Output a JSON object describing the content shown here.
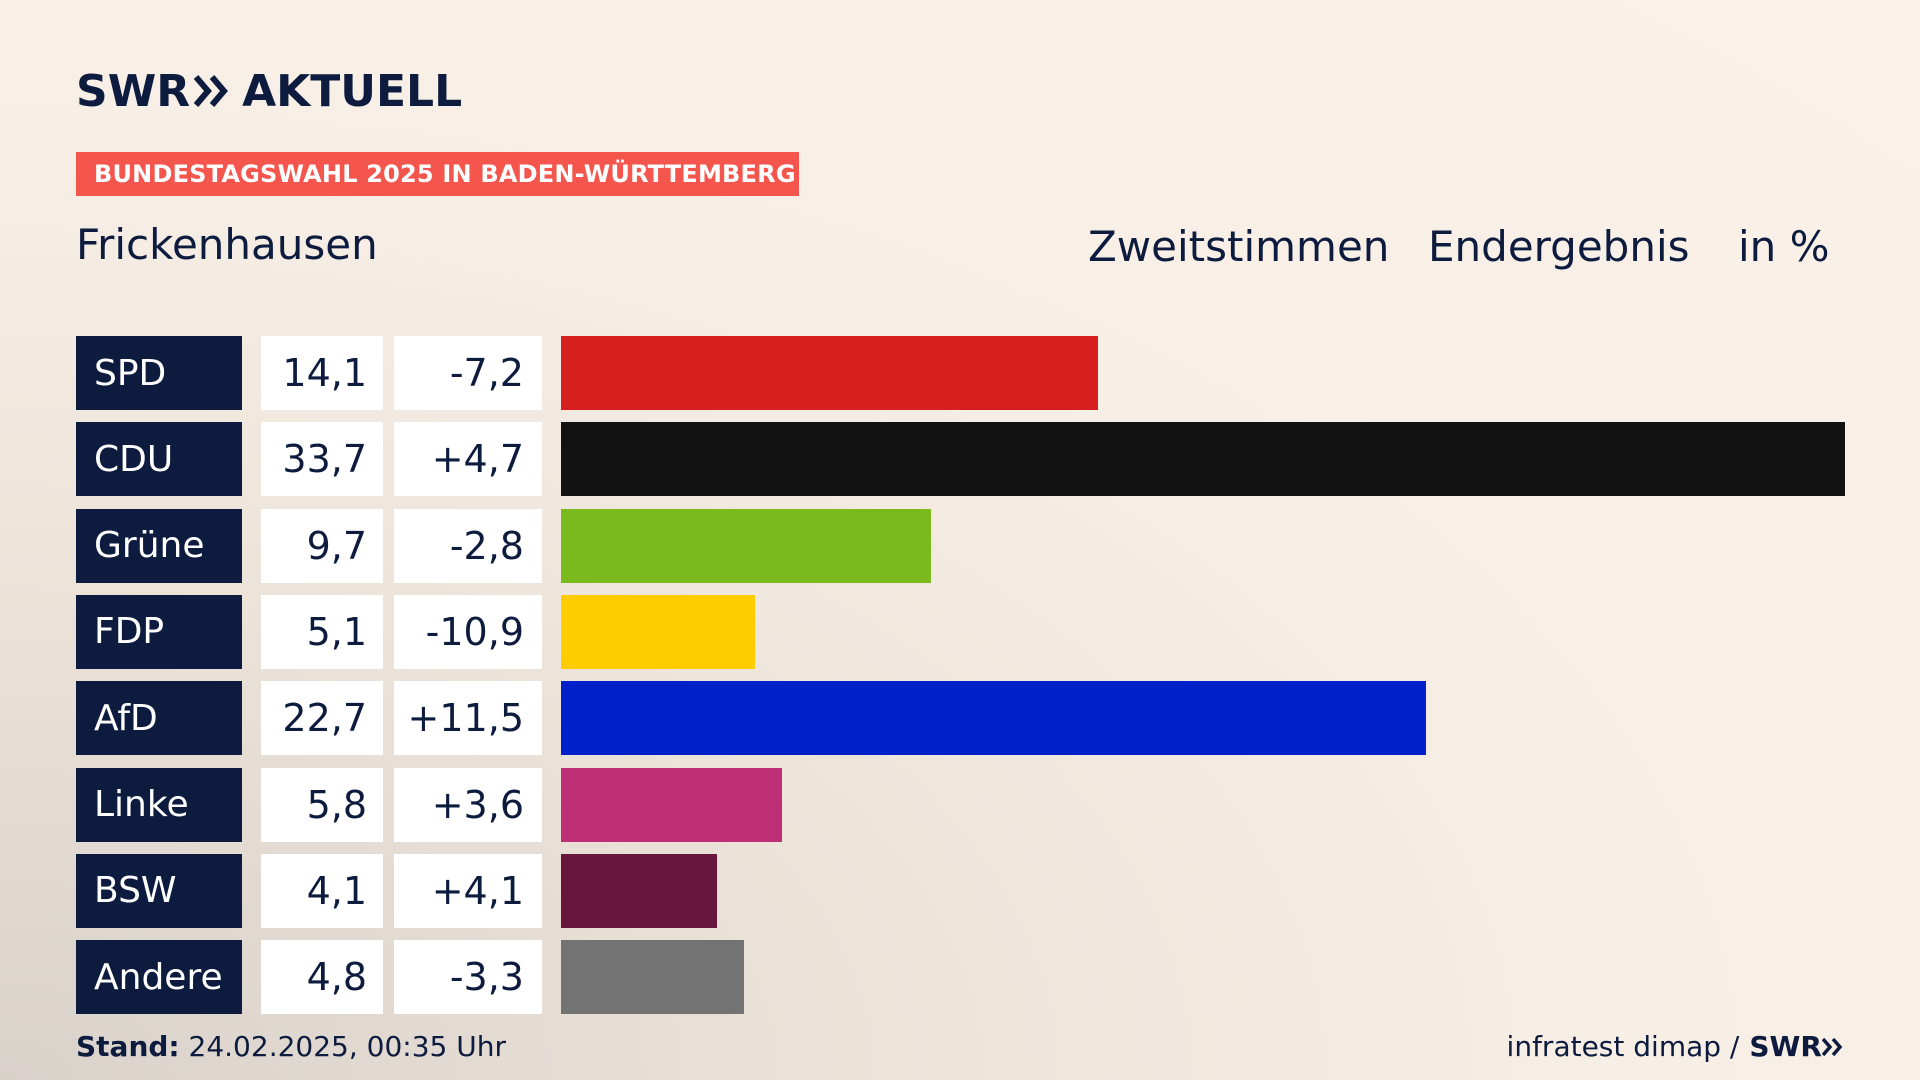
{
  "brand": {
    "logo_left": "SWR",
    "logo_right": "AKTUELL",
    "footer_logo": "SWR"
  },
  "banner": "BUNDESTAGSWAHL 2025 IN BADEN-WÜRTTEMBERG",
  "place": "Frickenhausen",
  "header": {
    "vote_type": "Zweitstimmen",
    "status": "Endergebnis",
    "unit": "in %"
  },
  "footer": {
    "stand_label": "Stand:",
    "stand_value": "24.02.2025, 00:35 Uhr",
    "source": "infratest dimap /"
  },
  "chart_data": {
    "type": "bar",
    "orientation": "horizontal",
    "categories": [
      "SPD",
      "CDU",
      "Grüne",
      "FDP",
      "AfD",
      "Linke",
      "BSW",
      "Andere"
    ],
    "values": [
      14.1,
      33.7,
      9.7,
      5.1,
      22.7,
      5.8,
      4.1,
      4.8
    ],
    "value_labels": [
      "14,1",
      "33,7",
      "9,7",
      "5,1",
      "22,7",
      "5,8",
      "4,1",
      "4,8"
    ],
    "diff_labels": [
      "-7,2",
      "+4,7",
      "-2,8",
      "-10,9",
      "+11,5",
      "+3,6",
      "+4,1",
      "-3,3"
    ],
    "diffs": [
      -7.2,
      4.7,
      -2.8,
      -10.9,
      11.5,
      3.6,
      4.1,
      -3.3
    ],
    "colors": [
      "#d71f1f",
      "#121212",
      "#7aba1c",
      "#ffcc00",
      "#0021c9",
      "#bd3075",
      "#68173c",
      "#737373"
    ],
    "xlim": [
      0,
      33.7
    ]
  }
}
